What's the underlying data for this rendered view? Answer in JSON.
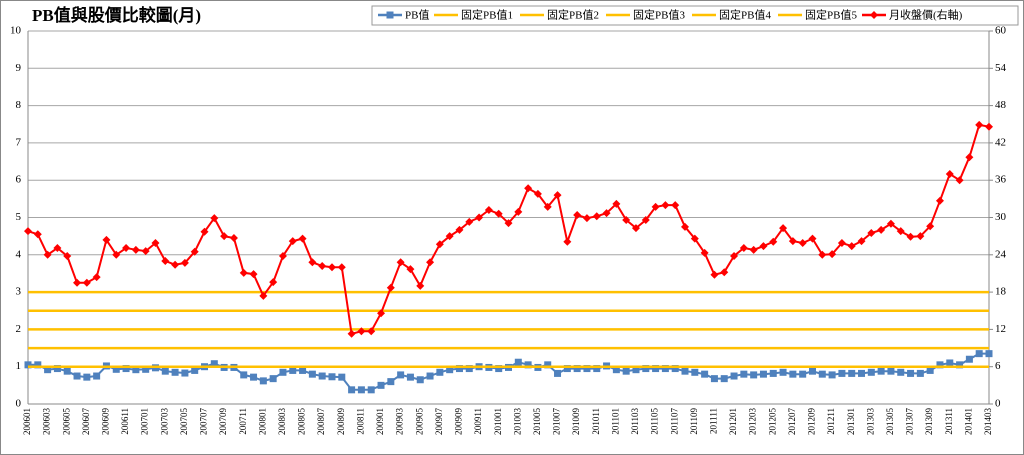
{
  "chart_data": {
    "type": "line",
    "title": "PB值與股價比較圖(月)",
    "categories": [
      "200601",
      null,
      "200603",
      null,
      "200605",
      null,
      "200607",
      null,
      "200609",
      null,
      "200611",
      null,
      "200701",
      null,
      "200703",
      null,
      "200705",
      null,
      "200707",
      null,
      "200709",
      null,
      "200711",
      null,
      "200801",
      null,
      "200803",
      null,
      "200805",
      null,
      "200807",
      null,
      "200809",
      null,
      "200811",
      null,
      "200901",
      null,
      "200903",
      null,
      "200905",
      null,
      "200907",
      null,
      "200909",
      null,
      "200911",
      null,
      "201001",
      null,
      "201003",
      null,
      "201005",
      null,
      "201007",
      null,
      "201009",
      null,
      "201011",
      null,
      "201101",
      null,
      "201103",
      null,
      "201105",
      null,
      "201107",
      null,
      "201109",
      null,
      "201111",
      null,
      "201201",
      null,
      "201203",
      null,
      "201205",
      null,
      "201207",
      null,
      "201209",
      null,
      "201211",
      null,
      "201301",
      null,
      "201303",
      null,
      "201305",
      null,
      "201307",
      null,
      "201309",
      null,
      "201311",
      null,
      "201401",
      null,
      "201403"
    ],
    "ylim": [
      0,
      10
    ],
    "yticks": [
      0,
      1,
      2,
      3,
      4,
      5,
      6,
      7,
      8,
      9,
      10
    ],
    "y2lim": [
      0,
      60
    ],
    "y2ticks": [
      0,
      6,
      12,
      18,
      24,
      30,
      36,
      42,
      48,
      54,
      60
    ],
    "grid": true,
    "legend": "top-right",
    "series": [
      {
        "name": "PB值",
        "color": "#4f81bd",
        "marker": "square",
        "values": [
          1.05,
          1.05,
          0.92,
          0.95,
          0.88,
          0.75,
          0.72,
          0.75,
          1.02,
          0.93,
          0.95,
          0.92,
          0.93,
          0.97,
          0.88,
          0.85,
          0.83,
          0.9,
          1.0,
          1.08,
          0.98,
          0.98,
          0.78,
          0.72,
          0.62,
          0.68,
          0.85,
          0.9,
          0.9,
          0.8,
          0.75,
          0.73,
          0.72,
          0.38,
          0.38,
          0.38,
          0.5,
          0.6,
          0.78,
          0.72,
          0.65,
          0.75,
          0.85,
          0.92,
          0.95,
          0.95,
          1.0,
          0.98,
          0.95,
          0.98,
          1.12,
          1.05,
          0.98,
          1.05,
          0.82,
          0.95,
          0.95,
          0.95,
          0.95,
          1.02,
          0.92,
          0.88,
          0.92,
          0.95,
          0.95,
          0.95,
          0.95,
          0.88,
          0.85,
          0.8,
          0.68,
          0.68,
          0.75,
          0.8,
          0.78,
          0.8,
          0.82,
          0.85,
          0.8,
          0.8,
          0.88,
          0.8,
          0.78,
          0.82,
          0.82,
          0.82,
          0.85,
          0.88,
          0.88,
          0.85,
          0.82,
          0.82,
          0.9,
          1.05,
          1.1,
          1.05,
          1.2,
          1.35,
          1.35
        ]
      },
      {
        "name": "固定PB值1",
        "color": "#ffc000",
        "marker": "none",
        "values": [
          1,
          1,
          1,
          1,
          1,
          1,
          1,
          1,
          1,
          1,
          1,
          1,
          1,
          1,
          1,
          1,
          1,
          1,
          1,
          1,
          1,
          1,
          1,
          1,
          1,
          1,
          1,
          1,
          1,
          1,
          1,
          1,
          1,
          1,
          1,
          1,
          1,
          1,
          1,
          1,
          1,
          1,
          1,
          1,
          1,
          1,
          1,
          1,
          1,
          1,
          1,
          1,
          1,
          1,
          1,
          1,
          1,
          1,
          1,
          1,
          1,
          1,
          1,
          1,
          1,
          1,
          1,
          1,
          1,
          1,
          1,
          1,
          1,
          1,
          1,
          1,
          1,
          1,
          1,
          1,
          1,
          1,
          1,
          1,
          1,
          1,
          1,
          1,
          1,
          1,
          1,
          1,
          1,
          1,
          1,
          1,
          1,
          1,
          1
        ]
      },
      {
        "name": "固定PB值2",
        "color": "#ffc000",
        "marker": "none",
        "values": [
          1.5,
          1.5,
          1.5,
          1.5,
          1.5,
          1.5,
          1.5,
          1.5,
          1.5,
          1.5,
          1.5,
          1.5,
          1.5,
          1.5,
          1.5,
          1.5,
          1.5,
          1.5,
          1.5,
          1.5,
          1.5,
          1.5,
          1.5,
          1.5,
          1.5,
          1.5,
          1.5,
          1.5,
          1.5,
          1.5,
          1.5,
          1.5,
          1.5,
          1.5,
          1.5,
          1.5,
          1.5,
          1.5,
          1.5,
          1.5,
          1.5,
          1.5,
          1.5,
          1.5,
          1.5,
          1.5,
          1.5,
          1.5,
          1.5,
          1.5,
          1.5,
          1.5,
          1.5,
          1.5,
          1.5,
          1.5,
          1.5,
          1.5,
          1.5,
          1.5,
          1.5,
          1.5,
          1.5,
          1.5,
          1.5,
          1.5,
          1.5,
          1.5,
          1.5,
          1.5,
          1.5,
          1.5,
          1.5,
          1.5,
          1.5,
          1.5,
          1.5,
          1.5,
          1.5,
          1.5,
          1.5,
          1.5,
          1.5,
          1.5,
          1.5,
          1.5,
          1.5,
          1.5,
          1.5,
          1.5,
          1.5,
          1.5,
          1.5,
          1.5,
          1.5,
          1.5,
          1.5,
          1.5,
          1.5
        ]
      },
      {
        "name": "固定PB值3",
        "color": "#ffc000",
        "marker": "none",
        "values": [
          2,
          2,
          2,
          2,
          2,
          2,
          2,
          2,
          2,
          2,
          2,
          2,
          2,
          2,
          2,
          2,
          2,
          2,
          2,
          2,
          2,
          2,
          2,
          2,
          2,
          2,
          2,
          2,
          2,
          2,
          2,
          2,
          2,
          2,
          2,
          2,
          2,
          2,
          2,
          2,
          2,
          2,
          2,
          2,
          2,
          2,
          2,
          2,
          2,
          2,
          2,
          2,
          2,
          2,
          2,
          2,
          2,
          2,
          2,
          2,
          2,
          2,
          2,
          2,
          2,
          2,
          2,
          2,
          2,
          2,
          2,
          2,
          2,
          2,
          2,
          2,
          2,
          2,
          2,
          2,
          2,
          2,
          2,
          2,
          2,
          2,
          2,
          2,
          2,
          2,
          2,
          2,
          2,
          2,
          2,
          2,
          2,
          2,
          2
        ]
      },
      {
        "name": "固定PB值4",
        "color": "#ffc000",
        "marker": "none",
        "values": [
          2.5,
          2.5,
          2.5,
          2.5,
          2.5,
          2.5,
          2.5,
          2.5,
          2.5,
          2.5,
          2.5,
          2.5,
          2.5,
          2.5,
          2.5,
          2.5,
          2.5,
          2.5,
          2.5,
          2.5,
          2.5,
          2.5,
          2.5,
          2.5,
          2.5,
          2.5,
          2.5,
          2.5,
          2.5,
          2.5,
          2.5,
          2.5,
          2.5,
          2.5,
          2.5,
          2.5,
          2.5,
          2.5,
          2.5,
          2.5,
          2.5,
          2.5,
          2.5,
          2.5,
          2.5,
          2.5,
          2.5,
          2.5,
          2.5,
          2.5,
          2.5,
          2.5,
          2.5,
          2.5,
          2.5,
          2.5,
          2.5,
          2.5,
          2.5,
          2.5,
          2.5,
          2.5,
          2.5,
          2.5,
          2.5,
          2.5,
          2.5,
          2.5,
          2.5,
          2.5,
          2.5,
          2.5,
          2.5,
          2.5,
          2.5,
          2.5,
          2.5,
          2.5,
          2.5,
          2.5,
          2.5,
          2.5,
          2.5,
          2.5,
          2.5,
          2.5,
          2.5,
          2.5,
          2.5,
          2.5,
          2.5,
          2.5,
          2.5,
          2.5,
          2.5,
          2.5,
          2.5,
          2.5,
          2.5
        ]
      },
      {
        "name": "固定PB值5",
        "color": "#ffc000",
        "marker": "none",
        "values": [
          3,
          3,
          3,
          3,
          3,
          3,
          3,
          3,
          3,
          3,
          3,
          3,
          3,
          3,
          3,
          3,
          3,
          3,
          3,
          3,
          3,
          3,
          3,
          3,
          3,
          3,
          3,
          3,
          3,
          3,
          3,
          3,
          3,
          3,
          3,
          3,
          3,
          3,
          3,
          3,
          3,
          3,
          3,
          3,
          3,
          3,
          3,
          3,
          3,
          3,
          3,
          3,
          3,
          3,
          3,
          3,
          3,
          3,
          3,
          3,
          3,
          3,
          3,
          3,
          3,
          3,
          3,
          3,
          3,
          3,
          3,
          3,
          3,
          3,
          3,
          3,
          3,
          3,
          3,
          3,
          3,
          3,
          3,
          3,
          3,
          3,
          3,
          3,
          3,
          3,
          3,
          3,
          3,
          3,
          3,
          3,
          3,
          3,
          3
        ]
      },
      {
        "name": "月收盤價(右軸)",
        "color": "#ff0000",
        "marker": "diamond",
        "axis": "y2",
        "values": [
          27.8,
          27.3,
          24,
          25.1,
          23.8,
          19.5,
          19.5,
          20.4,
          26.4,
          24,
          25.1,
          24.8,
          24.6,
          25.9,
          23,
          22.4,
          22.7,
          24.5,
          27.7,
          29.9,
          27,
          26.7,
          21.1,
          20.9,
          17.4,
          19.6,
          23.8,
          26.2,
          26.6,
          22.8,
          22.2,
          22,
          22,
          11.3,
          11.7,
          11.7,
          14.6,
          18.7,
          22.8,
          21.7,
          19,
          22.8,
          25.7,
          27,
          28,
          29.3,
          30,
          31.2,
          30.6,
          29.1,
          30.9,
          34.7,
          33.8,
          31.7,
          33.6,
          26.1,
          30.4,
          29.9,
          30.2,
          30.7,
          32.2,
          29.6,
          28.3,
          29.6,
          31.7,
          32,
          32,
          28.5,
          26.6,
          24.3,
          20.8,
          21.2,
          23.8,
          25.1,
          24.8,
          25.4,
          26.1,
          28.3,
          26.2,
          25.9,
          26.6,
          24,
          24.1,
          25.9,
          25.4,
          26.2,
          27.5,
          28,
          29,
          27.8,
          26.9,
          27,
          28.6,
          32.7,
          37,
          36,
          39.7,
          44.9,
          44.6
        ]
      }
    ]
  }
}
